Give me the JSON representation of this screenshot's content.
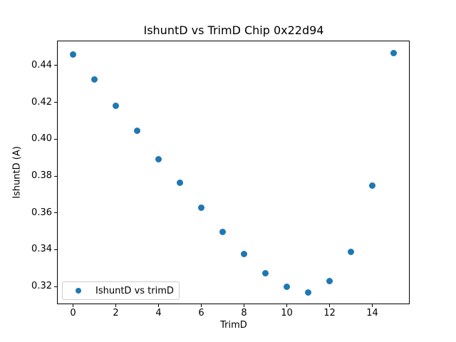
{
  "figure": {
    "background": "#ffffff"
  },
  "chart_data": {
    "type": "scatter",
    "title": "IshuntD vs TrimD Chip 0x22d94",
    "xlabel": "TrimD",
    "ylabel": "IshuntD (A)",
    "x": [
      0,
      1,
      2,
      3,
      4,
      5,
      6,
      7,
      8,
      9,
      10,
      11,
      12,
      13,
      14,
      15
    ],
    "y": [
      0.4459,
      0.4323,
      0.418,
      0.4046,
      0.3891,
      0.3764,
      0.3629,
      0.3495,
      0.3378,
      0.3272,
      0.32,
      0.3168,
      0.3229,
      0.3388,
      0.3749,
      0.4468
    ],
    "series_name": "IshuntD vs trimD",
    "xticks": [
      0,
      2,
      4,
      6,
      8,
      10,
      12,
      14
    ],
    "yticks": [
      0.32,
      0.34,
      0.36,
      0.38,
      0.4,
      0.42,
      0.44
    ],
    "xlim": [
      -0.75,
      15.75
    ],
    "ylim": [
      0.3103,
      0.4533
    ],
    "grid": false,
    "marker_color": "#1f77b4",
    "legend": {
      "label": "IshuntD vs trimD",
      "position": "lower left",
      "border_color": "#cccccc"
    }
  }
}
